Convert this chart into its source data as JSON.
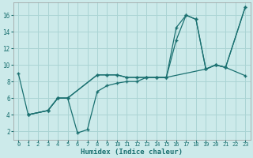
{
  "xlabel": "Humidex (Indice chaleur)",
  "bg_color": "#cceaea",
  "grid_color": "#aad4d4",
  "line_color": "#1a7070",
  "xlim": [
    -0.5,
    23.5
  ],
  "ylim": [
    1,
    17.5
  ],
  "yticks": [
    2,
    4,
    6,
    8,
    10,
    12,
    14,
    16
  ],
  "xticks": [
    0,
    1,
    2,
    3,
    4,
    5,
    6,
    7,
    8,
    9,
    10,
    11,
    12,
    13,
    14,
    15,
    16,
    17,
    18,
    19,
    20,
    21,
    22,
    23
  ],
  "line1_x": [
    0,
    1,
    3,
    4,
    5,
    8,
    9,
    10,
    11,
    12,
    13,
    14,
    15,
    19,
    20,
    21,
    23
  ],
  "line1_y": [
    9.0,
    4.0,
    4.5,
    6.0,
    6.0,
    8.8,
    8.8,
    8.8,
    8.5,
    8.5,
    8.5,
    8.5,
    8.5,
    9.5,
    10.0,
    9.7,
    17.0
  ],
  "line2_x": [
    1,
    3,
    4,
    5,
    6,
    7,
    8,
    9,
    10,
    11,
    12,
    13,
    14,
    15,
    16,
    17,
    18,
    19,
    20,
    21,
    23
  ],
  "line2_y": [
    4.0,
    4.5,
    6.0,
    6.0,
    1.8,
    2.2,
    6.8,
    7.5,
    7.8,
    8.0,
    8.0,
    8.5,
    8.5,
    8.5,
    14.5,
    16.0,
    15.5,
    9.5,
    10.0,
    9.7,
    8.7
  ],
  "line3_x": [
    1,
    3,
    4,
    5,
    8,
    9,
    10,
    11,
    12,
    13,
    14,
    15,
    16,
    17,
    18,
    19,
    20,
    21,
    23
  ],
  "line3_y": [
    4.0,
    4.5,
    6.0,
    6.0,
    8.8,
    8.8,
    8.8,
    8.5,
    8.5,
    8.5,
    8.5,
    8.5,
    13.0,
    16.0,
    15.5,
    9.5,
    10.0,
    9.7,
    17.0
  ]
}
